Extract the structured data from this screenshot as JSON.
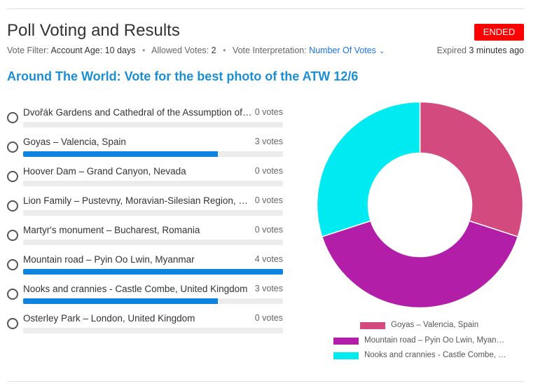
{
  "header": {
    "title": "Poll Voting and Results",
    "status_badge": "ENDED",
    "status_color": "#ff0000"
  },
  "meta": {
    "vote_filter_label": "Vote Filter:",
    "vote_filter_value": "Account Age: 10 days",
    "allowed_votes_label": "Allowed Votes:",
    "allowed_votes_value": "2",
    "vote_interpretation_label": "Vote Interpretation:",
    "vote_interpretation_value": "Number Of Votes",
    "dropdown_icon": "chevron-down-icon",
    "expired_label": "Expired",
    "expired_value": "3 minutes ago"
  },
  "poll": {
    "title": "Around The World: Vote for the best photo of the ATW 12/6",
    "options": [
      {
        "label": "Dvořák Gardens and Cathedral of the Assumption of Our Lady",
        "votes_text": "0 votes",
        "votes": 0
      },
      {
        "label": "Goyas – Valencia, Spain",
        "votes_text": "3 votes",
        "votes": 3
      },
      {
        "label": "Hoover Dam – Grand Canyon, Nevada",
        "votes_text": "0 votes",
        "votes": 0
      },
      {
        "label": "Lion Family – Pustevny, Moravian-Silesian Region, Czech Republic",
        "votes_text": "0 votes",
        "votes": 0
      },
      {
        "label": "Martyr's monument – Bucharest, Romania",
        "votes_text": "0 votes",
        "votes": 0
      },
      {
        "label": "Mountain road – Pyin Oo Lwin, Myanmar",
        "votes_text": "4 votes",
        "votes": 4
      },
      {
        "label": "Nooks and crannies - Castle Combe, United Kingdom",
        "votes_text": "3 votes",
        "votes": 3
      },
      {
        "label": "Osterley Park – London, United Kingdom",
        "votes_text": "0 votes",
        "votes": 0
      }
    ],
    "max_votes": 4,
    "bar_color": "#0d85e0"
  },
  "chart_data": {
    "type": "pie",
    "donut": true,
    "legend_position": "bottom",
    "labels": [
      "Goyas – Valencia, Spain",
      "Mountain road – Pyin Oo Lwin, Myanmar",
      "Nooks and crannies - Castle Combe, United Kingdom"
    ],
    "values": [
      3,
      4,
      3
    ],
    "colors": [
      "#d34b7e",
      "#b31ea8",
      "#00eaf2"
    ]
  }
}
